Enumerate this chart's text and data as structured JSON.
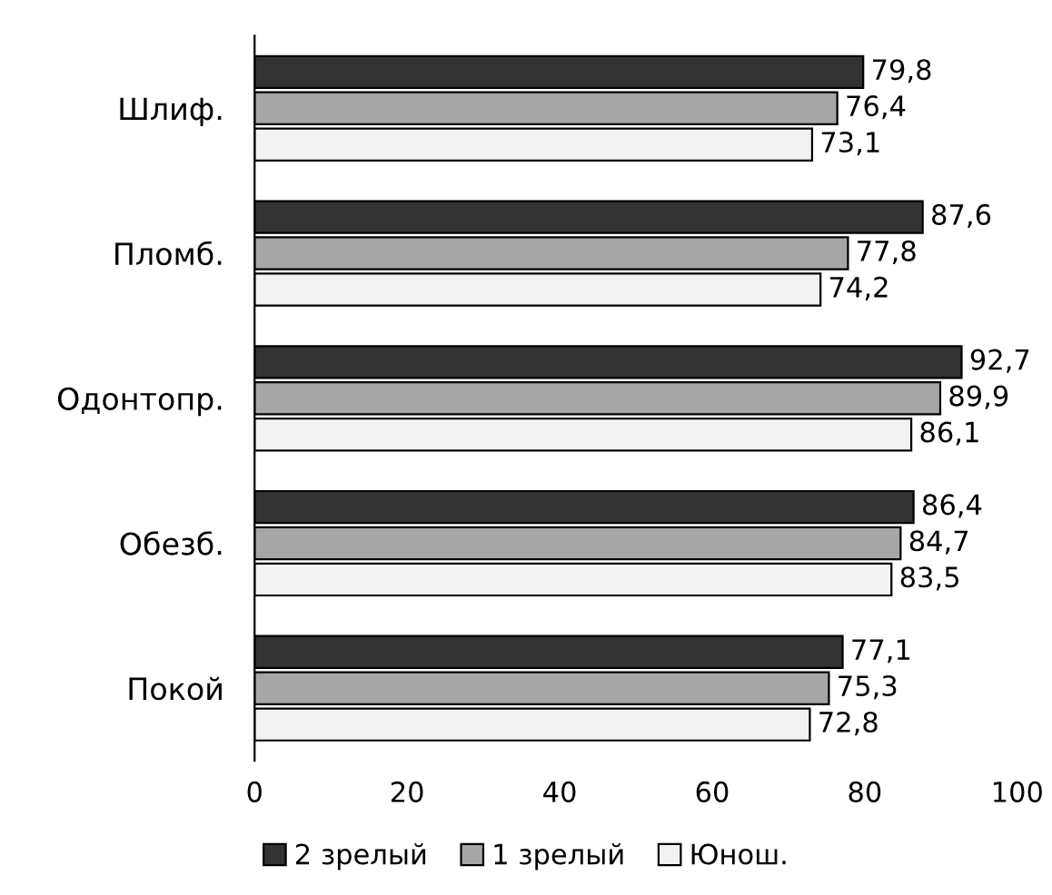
{
  "chart_data": {
    "type": "bar",
    "orientation": "horizontal",
    "categories": [
      "Шлиф.",
      "Пломб.",
      "Одонтопр.",
      "Обезб.",
      "Покой"
    ],
    "series": [
      {
        "name": "2 зрелый",
        "color": "#333333",
        "values": [
          79.8,
          87.6,
          92.7,
          86.4,
          77.1
        ],
        "value_labels": [
          "79,8",
          "87,6",
          "92,7",
          "86,4",
          "77,1"
        ]
      },
      {
        "name": "1 зрелый",
        "color": "#a6a6a6",
        "values": [
          76.4,
          77.8,
          89.9,
          84.7,
          75.3
        ],
        "value_labels": [
          "76,4",
          "77,8",
          "89,9",
          "84,7",
          "75,3"
        ]
      },
      {
        "name": "Юнош.",
        "color": "#f2f2f2",
        "values": [
          73.1,
          74.2,
          86.1,
          83.5,
          72.8
        ],
        "value_labels": [
          "73,1",
          "74,2",
          "86,1",
          "83,5",
          "72,8"
        ]
      }
    ],
    "xlim": [
      0,
      100
    ],
    "xticks": [
      0,
      20,
      40,
      60,
      80,
      100
    ],
    "grid": false,
    "legend": "bottom"
  }
}
